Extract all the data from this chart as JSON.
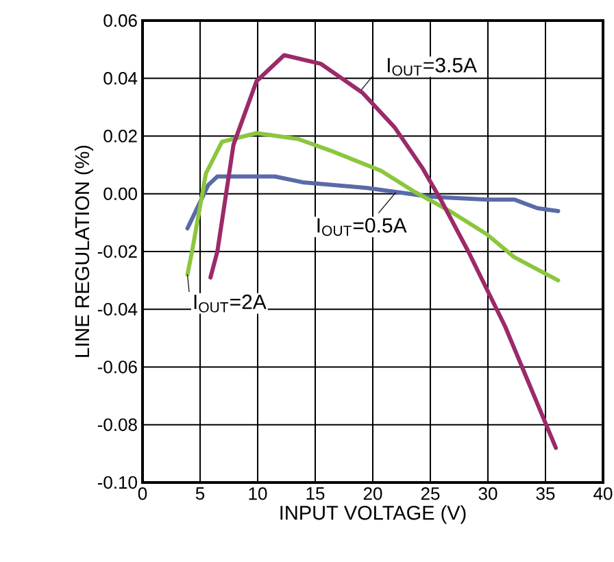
{
  "chart_data": {
    "type": "line",
    "xlabel": "INPUT VOLTAGE (V)",
    "ylabel": "LINE REGULATION (%)",
    "xlim": [
      0,
      40
    ],
    "xticks": [
      0,
      5,
      10,
      15,
      20,
      25,
      30,
      35,
      40
    ],
    "ylim": [
      -0.1,
      0.06
    ],
    "yticks": [
      {
        "value": -0.1,
        "label": "-0.10"
      },
      {
        "value": -0.08,
        "label": "-0.08"
      },
      {
        "value": -0.06,
        "label": "-0.06"
      },
      {
        "value": -0.04,
        "label": "-0.04"
      },
      {
        "value": -0.02,
        "label": "-0.02"
      },
      {
        "value": 0,
        "label": "0.00"
      },
      {
        "value": 0.02,
        "label": "0.02"
      },
      {
        "value": 0.04,
        "label": "0.04"
      },
      {
        "value": 0.06,
        "label": "0.06"
      }
    ],
    "grid": true,
    "marker": "none",
    "line_style": "solid",
    "series": [
      {
        "color": "#5a6aa8",
        "x": [
          3.9,
          5.7,
          6.5,
          11.5,
          13.9,
          19.5,
          25,
          29.9,
          32.3,
          34.3,
          36.1
        ],
        "values": [
          -0.012,
          0.003,
          0.006,
          0.006,
          0.004,
          0.002,
          -0.001,
          -0.002,
          -0.002,
          -0.005,
          -0.006
        ]
      },
      {
        "color": "#8cc63f",
        "x": [
          3.9,
          4.3,
          5.5,
          6.9,
          9.9,
          13.5,
          16.3,
          20.7,
          23.5,
          26.7,
          29.9,
          32.3,
          36.1
        ],
        "values": [
          -0.028,
          -0.02,
          0.007,
          0.018,
          0.021,
          0.019,
          0.015,
          0.008,
          0.001,
          -0.006,
          -0.014,
          -0.022,
          -0.03
        ]
      },
      {
        "color": "#9b2a6a",
        "x": [
          5.9,
          6.5,
          7.9,
          9.9,
          12.3,
          15.5,
          19.1,
          21.9,
          24.3,
          25.9,
          28.3,
          31.5,
          35.9
        ],
        "values": [
          -0.029,
          -0.02,
          0.017,
          0.039,
          0.048,
          0.045,
          0.035,
          0.023,
          0.009,
          -0.002,
          -0.02,
          -0.046,
          -0.088
        ]
      }
    ],
    "annotations": [
      {
        "text": "I$_{OUT}$=3.5A",
        "x": 19,
        "y": 0.036
      },
      {
        "text": "I$_{OUT}$=0.5A",
        "x": 22,
        "y": 0.0005
      },
      {
        "text": "I$_{OUT}$=2A",
        "x": 3.9,
        "y": -0.028
      }
    ]
  }
}
